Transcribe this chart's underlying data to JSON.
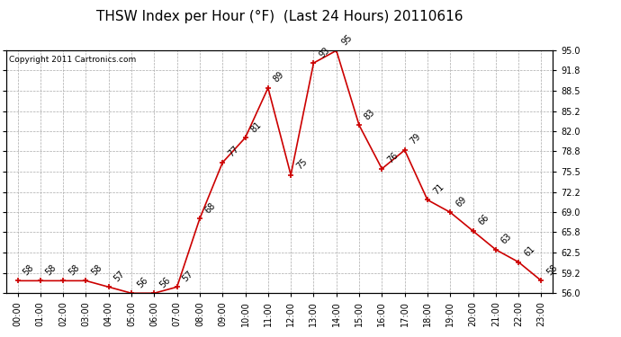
{
  "title": "THSW Index per Hour (°F)  (Last 24 Hours) 20110616",
  "copyright": "Copyright 2011 Cartronics.com",
  "hours": [
    "00:00",
    "01:00",
    "02:00",
    "03:00",
    "04:00",
    "05:00",
    "06:00",
    "07:00",
    "08:00",
    "09:00",
    "10:00",
    "11:00",
    "12:00",
    "13:00",
    "14:00",
    "15:00",
    "16:00",
    "17:00",
    "18:00",
    "19:00",
    "20:00",
    "21:00",
    "22:00",
    "23:00"
  ],
  "values": [
    58,
    58,
    58,
    58,
    57,
    56,
    56,
    57,
    68,
    77,
    81,
    89,
    75,
    93,
    95,
    83,
    76,
    79,
    71,
    69,
    66,
    63,
    61,
    58
  ],
  "ylim_min": 56.0,
  "ylim_max": 95.0,
  "yticks": [
    56.0,
    59.2,
    62.5,
    65.8,
    69.0,
    72.2,
    75.5,
    78.8,
    82.0,
    85.2,
    88.5,
    91.8,
    95.0
  ],
  "line_color": "#cc0000",
  "marker_color": "#cc0000",
  "bg_color": "#ffffff",
  "grid_color": "#aaaaaa",
  "title_fontsize": 11,
  "label_fontsize": 7,
  "tick_fontsize": 7,
  "copyright_fontsize": 6.5
}
